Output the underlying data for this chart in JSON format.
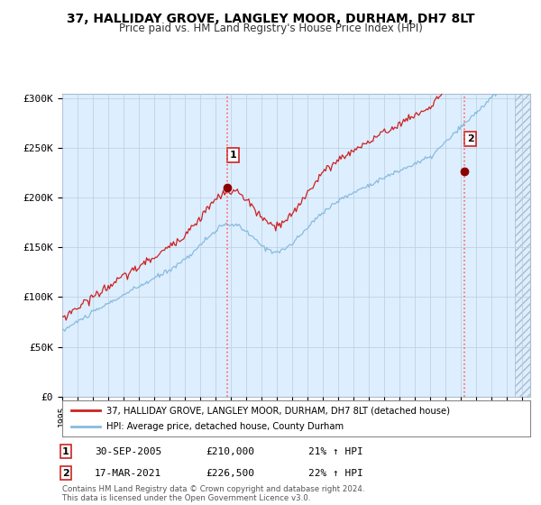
{
  "title_line1": "37, HALLIDAY GROVE, LANGLEY MOOR, DURHAM, DH7 8LT",
  "title_line2": "Price paid vs. HM Land Registry's House Price Index (HPI)",
  "background_color": "#ffffff",
  "plot_bg_color": "#ddeeff",
  "hpi_line_color": "#88bbdd",
  "price_line_color": "#cc2222",
  "marker_color": "#8b0000",
  "vline_color": "#ff8888",
  "ylabel_ticks": [
    "£0",
    "£50K",
    "£100K",
    "£150K",
    "£200K",
    "£250K",
    "£300K"
  ],
  "ytick_values": [
    0,
    50000,
    100000,
    150000,
    200000,
    250000,
    300000
  ],
  "ylim": [
    0,
    305000
  ],
  "xlim_start": 1995.0,
  "xlim_end": 2025.5,
  "sale1_x": 2005.75,
  "sale1_y": 210000,
  "sale2_x": 2021.22,
  "sale2_y": 226500,
  "legend_label1": "37, HALLIDAY GROVE, LANGLEY MOOR, DURHAM, DH7 8LT (detached house)",
  "legend_label2": "HPI: Average price, detached house, County Durham",
  "note1_date": "30-SEP-2005",
  "note1_price": "£210,000",
  "note1_hpi": "21% ↑ HPI",
  "note2_date": "17-MAR-2021",
  "note2_price": "£226,500",
  "note2_hpi": "22% ↑ HPI",
  "footer": "Contains HM Land Registry data © Crown copyright and database right 2024.\nThis data is licensed under the Open Government Licence v3.0."
}
